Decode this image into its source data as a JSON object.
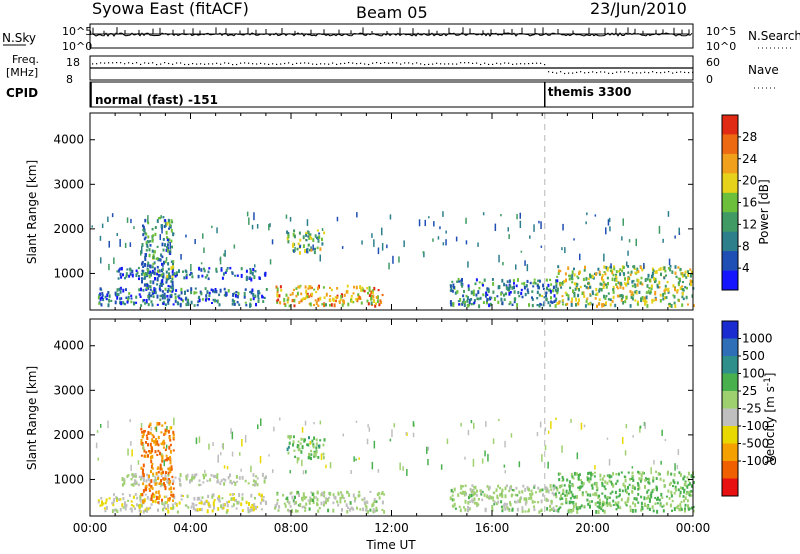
{
  "header": {
    "radar": "Syowa East (fitACF)",
    "beam": "Beam 05",
    "date": "23/Jun/2010"
  },
  "top_panels": {
    "nsky_label": "N.Sky",
    "nsky_ticks": [
      "10^5",
      "10^0"
    ],
    "nsearch_label": "N.Search",
    "nsearch_ticks": [
      "10^5",
      "10^0"
    ],
    "freq_label": "Freq.",
    "freq_unit": "[MHz]",
    "freq_ticks": [
      "18",
      "8"
    ],
    "nave_label": "Nave",
    "nave_ticks": [
      "60",
      "0"
    ],
    "cpid_label": "CPID",
    "cpid_segments": [
      {
        "name": "normal (fast) -151",
        "start_hour": 0
      },
      {
        "name": "themis 3300",
        "start_hour": 18.1
      }
    ]
  },
  "chart_data": [
    {
      "type": "heatmap",
      "title": "",
      "xlabel": "",
      "ylabel": "Slant Range [km]",
      "x_range_hours": [
        0,
        24
      ],
      "ylim": [
        180,
        4600
      ],
      "y_ticks": [
        "1000",
        "2000",
        "3000",
        "4000"
      ],
      "colorbar": {
        "label": "Power [dB]",
        "range": [
          0,
          32
        ],
        "ticks": [
          "4",
          "8",
          "12",
          "16",
          "20",
          "24",
          "28"
        ],
        "colors": [
          "#1515ff",
          "#1f4fb4",
          "#2e7f8c",
          "#3f9a64",
          "#6bbf3a",
          "#e6d21a",
          "#f0a01a",
          "#ee6a12",
          "#e02a14"
        ]
      },
      "echo_regions": [
        {
          "t0": 0.3,
          "t1": 7.0,
          "r0": 300,
          "r1": 700,
          "value": 8
        },
        {
          "t0": 1.0,
          "t1": 7.0,
          "r0": 900,
          "r1": 1150,
          "value": 6
        },
        {
          "t0": 2.0,
          "t1": 3.3,
          "r0": 500,
          "r1": 2300,
          "value": 10
        },
        {
          "t0": 7.3,
          "t1": 11.7,
          "r0": 300,
          "r1": 750,
          "value": 22
        },
        {
          "t0": 7.8,
          "t1": 9.3,
          "r0": 1500,
          "r1": 2000,
          "value": 14
        },
        {
          "t0": 14.3,
          "t1": 18.6,
          "r0": 300,
          "r1": 900,
          "value": 10
        },
        {
          "t0": 18.5,
          "t1": 24.0,
          "r0": 300,
          "r1": 1200,
          "value": 16
        }
      ]
    },
    {
      "type": "heatmap",
      "title": "",
      "xlabel": "Time UT",
      "ylabel": "Slant Range [km]",
      "x_range_hours": [
        0,
        24
      ],
      "ylim": [
        180,
        4600
      ],
      "y_ticks": [
        "1000",
        "2000",
        "3000",
        "4000"
      ],
      "x_ticks": [
        "00:00",
        "04:00",
        "08:00",
        "12:00",
        "16:00",
        "20:00",
        "00:00"
      ],
      "colorbar": {
        "label": "Velocity [m s^-1]",
        "range": [
          -1200,
          1200
        ],
        "ticks": [
          "1000",
          "500",
          "100",
          "25",
          "-25",
          "-100",
          "-500",
          "-1000"
        ],
        "colors": [
          "#1a2bd0",
          "#2f6fb8",
          "#2f8f8a",
          "#49b04e",
          "#9fd070",
          "#bfbfbf",
          "#e8d800",
          "#f3a000",
          "#f06000",
          "#e81010"
        ]
      },
      "echo_regions": [
        {
          "t0": 0.3,
          "t1": 7.0,
          "r0": 300,
          "r1": 700,
          "value": -150
        },
        {
          "t0": 1.0,
          "t1": 7.0,
          "r0": 900,
          "r1": 1150,
          "value": 0
        },
        {
          "t0": 2.0,
          "t1": 3.3,
          "r0": 500,
          "r1": 2300,
          "value": -700
        },
        {
          "t0": 7.3,
          "t1": 11.7,
          "r0": 300,
          "r1": 750,
          "value": 60
        },
        {
          "t0": 7.8,
          "t1": 9.3,
          "r0": 1500,
          "r1": 2000,
          "value": 300
        },
        {
          "t0": 14.3,
          "t1": 18.6,
          "r0": 300,
          "r1": 900,
          "value": 90
        },
        {
          "t0": 18.5,
          "t1": 24.0,
          "r0": 300,
          "r1": 1200,
          "value": 250
        }
      ]
    }
  ]
}
